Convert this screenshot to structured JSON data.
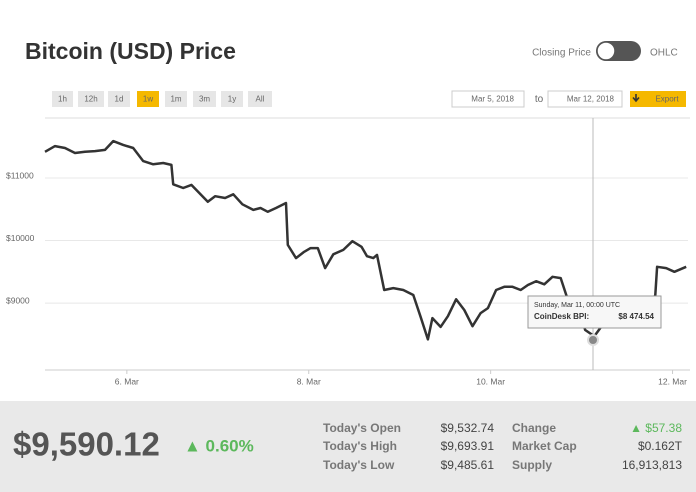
{
  "header": {
    "title": "Bitcoin (USD) Price",
    "toggle_left": "Closing Price",
    "toggle_right": "OHLC"
  },
  "controls": {
    "ranges": [
      "1h",
      "12h",
      "1d",
      "1w",
      "1m",
      "3m",
      "1y",
      "All"
    ],
    "active": "1w",
    "from": "Mar 5, 2018",
    "to_label": "to",
    "to": "Mar 12, 2018",
    "export": "Export"
  },
  "chart_data": {
    "type": "line",
    "x": [
      5.1,
      5.21,
      5.32,
      5.43,
      5.54,
      5.65,
      5.76,
      5.85,
      5.96,
      6.07,
      6.18,
      6.29,
      6.4,
      6.49,
      6.51,
      6.62,
      6.71,
      6.81,
      6.89,
      6.97,
      7.08,
      7.17,
      7.27,
      7.39,
      7.47,
      7.55,
      7.64,
      7.75,
      7.77,
      7.86,
      7.95,
      8.02,
      8.1,
      8.18,
      8.27,
      8.38,
      8.48,
      8.58,
      8.64,
      8.71,
      8.75,
      8.83,
      8.93,
      9.04,
      9.15,
      9.23,
      9.31,
      9.36,
      9.45,
      9.53,
      9.62,
      9.71,
      9.8,
      9.89,
      9.97,
      10.06,
      10.15,
      10.24,
      10.33,
      10.41,
      10.5,
      10.59,
      10.68,
      10.77,
      10.85,
      10.94,
      11.04,
      11.14,
      11.23,
      11.32,
      11.43,
      11.54,
      11.65,
      11.76,
      11.81,
      11.83,
      11.93,
      12.02,
      12.15
    ],
    "series": [
      {
        "name": "CoinDesk BPI",
        "color": "#333333",
        "values": [
          11420,
          11510,
          11480,
          11400,
          11420,
          11430,
          11450,
          11590,
          11530,
          11480,
          11270,
          11220,
          11240,
          11210,
          10900,
          10840,
          10890,
          10740,
          10620,
          10710,
          10680,
          10740,
          10580,
          10490,
          10520,
          10460,
          10520,
          10600,
          9930,
          9720,
          9820,
          9880,
          9880,
          9560,
          9780,
          9850,
          9990,
          9900,
          9750,
          9720,
          9770,
          9210,
          9240,
          9210,
          9130,
          8780,
          8420,
          8760,
          8620,
          8790,
          9060,
          8890,
          8630,
          8840,
          8920,
          9210,
          9260,
          9260,
          9210,
          9290,
          9350,
          9300,
          9420,
          9400,
          9050,
          9050,
          8570,
          8470,
          8650,
          8680,
          8630,
          8620,
          8860,
          8970,
          9130,
          9580,
          9560,
          9500,
          9580
        ]
      }
    ],
    "xlim": [
      5.1,
      12.17
    ],
    "xticks": [
      {
        "value": 6,
        "label": "6. Mar"
      },
      {
        "value": 8,
        "label": "8. Mar"
      },
      {
        "value": 10,
        "label": "10. Mar"
      },
      {
        "value": 12,
        "label": "12. Mar"
      }
    ],
    "ylim": [
      7930,
      11960
    ],
    "yticks": [
      {
        "value": 9000,
        "label": "$9000"
      },
      {
        "value": 10000,
        "label": "$10000"
      },
      {
        "value": 11000,
        "label": "$11000"
      }
    ],
    "grid": true
  },
  "tooltip": {
    "date": "Sunday, Mar 11, 00:00 UTC",
    "label": "CoinDesk BPI:",
    "value": "$8 474.54"
  },
  "stats": {
    "price": "$9,590.12",
    "change_pct": "▲ 0.60%",
    "rows": [
      [
        "Today's Open",
        "$9,532.74",
        "Change",
        "▲ $57.38"
      ],
      [
        "Today's High",
        "$9,693.91",
        "Market Cap",
        "$0.162T"
      ],
      [
        "Today's Low",
        "$9,485.61",
        "Supply",
        "16,913,813"
      ]
    ]
  }
}
